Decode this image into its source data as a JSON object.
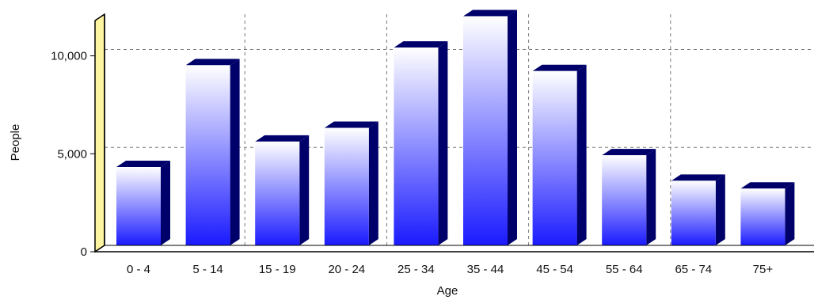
{
  "chart_data": {
    "type": "bar",
    "title": "",
    "xlabel": "Age",
    "ylabel": "People",
    "categories": [
      "0 - 4",
      "5 - 14",
      "15 - 19",
      "20 - 24",
      "25 - 34",
      "35 - 44",
      "45 - 54",
      "55 - 64",
      "65 - 74",
      "75+"
    ],
    "values": [
      4000,
      9200,
      5300,
      6000,
      10100,
      11700,
      8900,
      4600,
      3300,
      2900
    ],
    "ylim": [
      0,
      11800
    ],
    "yticks": [
      0,
      5000,
      10000
    ],
    "ytick_labels": [
      "0",
      "5,000",
      "10,000"
    ],
    "grid": true,
    "legend": "none",
    "colors": {
      "bar_top": "#ffffff",
      "bar_bottom": "#1a1aff",
      "bar_side": "#00006a",
      "back_wall": "#ffffff",
      "left_wall": "#fff4a0",
      "grid": "#777777",
      "axis": "#000000"
    }
  }
}
